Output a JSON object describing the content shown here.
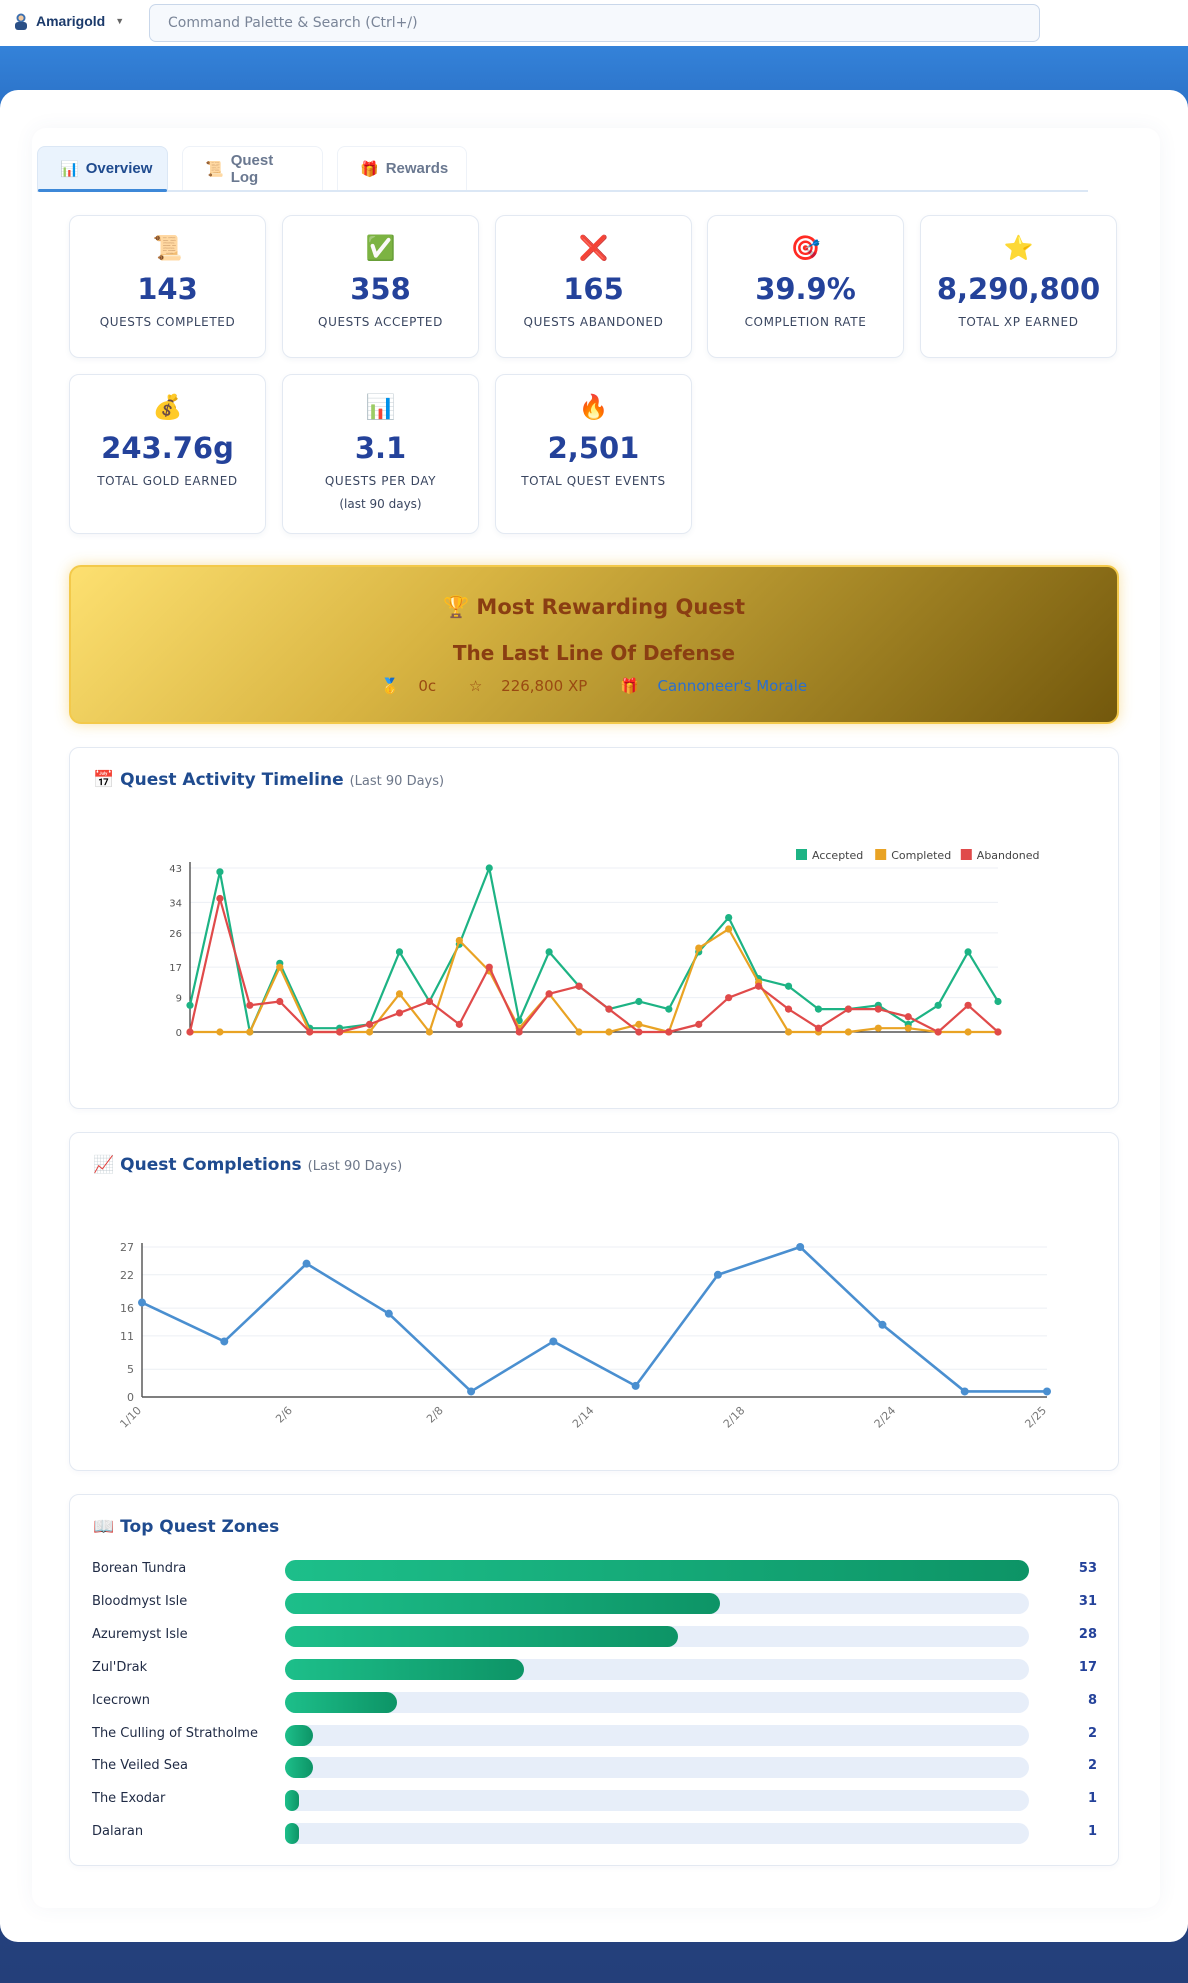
{
  "account": {
    "name": "Amarigold",
    "icon": "player-avatar-icon"
  },
  "search": {
    "placeholder": "Command Palette & Search (Ctrl+/)"
  },
  "tabs": [
    {
      "label": "Overview",
      "icon": "chart-icon",
      "active": true
    },
    {
      "label": "Quest Log",
      "icon": "scroll-icon",
      "active": false
    },
    {
      "label": "Rewards",
      "icon": "gift-icon",
      "active": false
    }
  ],
  "stats": [
    {
      "icon": "scroll-icon",
      "value": "143",
      "label": "QUESTS COMPLETED"
    },
    {
      "icon": "check-icon",
      "value": "358",
      "label": "QUESTS ACCEPTED"
    },
    {
      "icon": "cross-icon",
      "value": "165",
      "label": "QUESTS ABANDONED"
    },
    {
      "icon": "target-icon",
      "value": "39.9%",
      "label": "COMPLETION RATE"
    },
    {
      "icon": "star-icon",
      "value": "8,290,800",
      "label": "TOTAL XP EARNED"
    },
    {
      "icon": "money-bag-icon",
      "value": "243.76g",
      "label": "TOTAL GOLD EARNED"
    },
    {
      "icon": "bar-chart-icon",
      "value": "3.1",
      "label": "QUESTS PER DAY",
      "sub": "(last 90 days)"
    },
    {
      "icon": "fire-icon",
      "value": "2,501",
      "label": "TOTAL QUEST EVENTS"
    }
  ],
  "rewarding": {
    "title": "Most Rewarding Quest",
    "quest": "The Last Line Of Defense",
    "gold": "0c",
    "xp": "226,800 XP",
    "item": "Cannoneer's Morale"
  },
  "timeline": {
    "title": "Quest Activity Timeline",
    "subtitle": "(Last 90 Days)"
  },
  "completions": {
    "title": "Quest Completions",
    "subtitle": "(Last 90 Days)"
  },
  "zones": {
    "title": "Top Quest Zones",
    "items": [
      {
        "name": "Borean Tundra",
        "count": 53
      },
      {
        "name": "Bloodmyst Isle",
        "count": 31
      },
      {
        "name": "Azuremyst Isle",
        "count": 28
      },
      {
        "name": "Zul'Drak",
        "count": 17
      },
      {
        "name": "Icecrown",
        "count": 8
      },
      {
        "name": "The Culling of Stratholme",
        "count": 2
      },
      {
        "name": "The Veiled Sea",
        "count": 2
      },
      {
        "name": "The Exodar",
        "count": 1
      },
      {
        "name": "Dalaran",
        "count": 1
      }
    ]
  },
  "chart_data": [
    {
      "type": "line",
      "title": "Quest Activity Timeline",
      "ylim": [
        0,
        43
      ],
      "yticks": [
        0,
        9,
        17,
        26,
        34,
        43
      ],
      "legend": "top-right",
      "series": [
        {
          "name": "Accepted",
          "color": "#1db384",
          "values": [
            7,
            42,
            0,
            18,
            1,
            1,
            2,
            21,
            8,
            23,
            43,
            3,
            21,
            12,
            6,
            8,
            6,
            21,
            30,
            14,
            12,
            6,
            6,
            7,
            2,
            7,
            21,
            8
          ]
        },
        {
          "name": "Completed",
          "color": "#e9a324",
          "values": [
            0,
            0,
            0,
            17,
            0,
            0,
            0,
            10,
            0,
            24,
            16,
            1,
            10,
            0,
            0,
            2,
            0,
            22,
            27,
            13,
            0,
            0,
            0,
            1,
            1,
            0,
            0,
            0
          ]
        },
        {
          "name": "Abandoned",
          "color": "#e04a4a",
          "values": [
            0,
            35,
            7,
            8,
            0,
            0,
            2,
            5,
            8,
            2,
            17,
            0,
            10,
            12,
            6,
            0,
            0,
            2,
            9,
            12,
            6,
            1,
            6,
            6,
            4,
            0,
            7,
            0
          ]
        }
      ]
    },
    {
      "type": "line",
      "title": "Quest Completions",
      "ylim": [
        0,
        27
      ],
      "yticks": [
        0,
        5,
        11,
        16,
        22,
        27
      ],
      "xtick_labels": [
        "1/10",
        "2/6",
        "2/8",
        "2/14",
        "2/18",
        "2/24",
        "2/25"
      ],
      "series": [
        {
          "name": "Completions",
          "color": "#4a8fd0",
          "values": [
            17,
            10,
            24,
            15,
            1,
            10,
            2,
            22,
            27,
            13,
            1,
            1
          ]
        }
      ]
    }
  ]
}
